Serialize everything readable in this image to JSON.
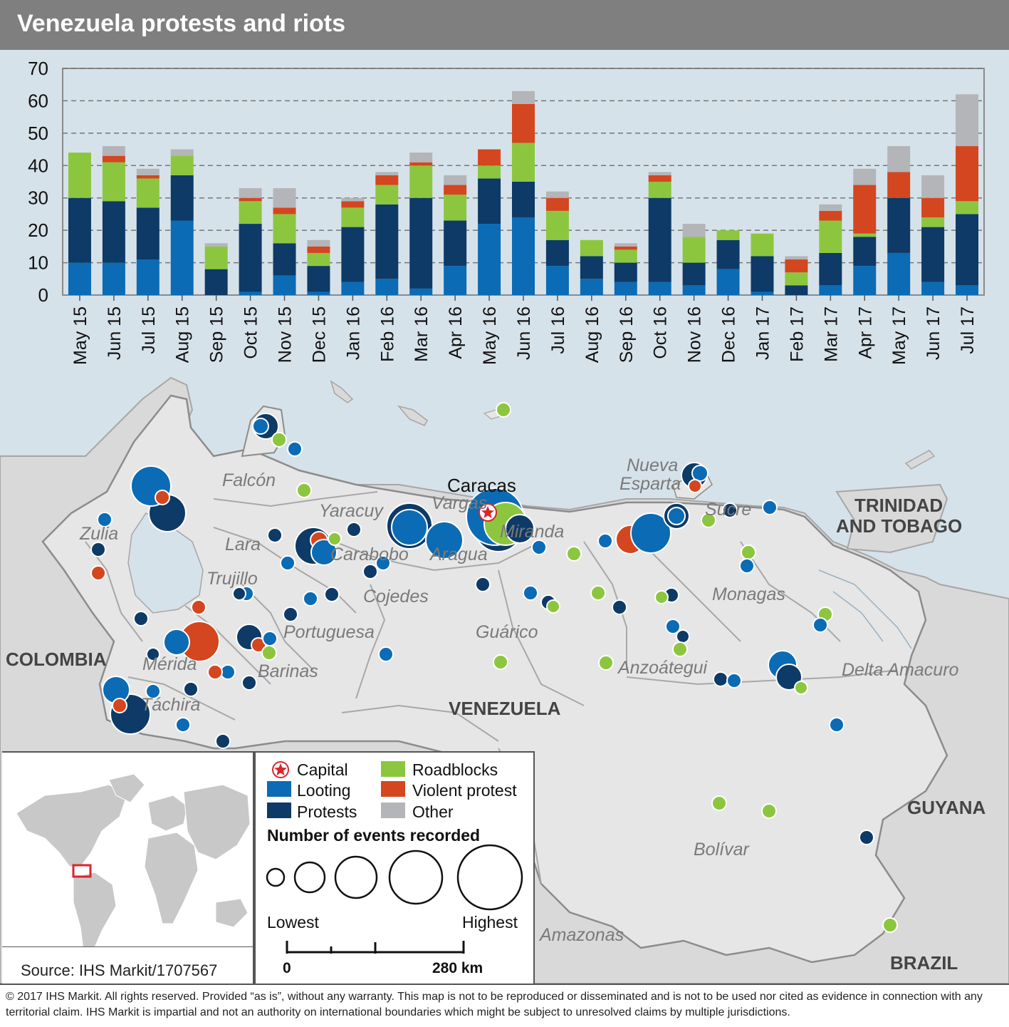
{
  "title": "Venezuela protests and riots",
  "chart_data": {
    "type": "bar",
    "stacked": true,
    "categories": [
      "May 15",
      "Jun 15",
      "Jul 15",
      "Aug 15",
      "Sep 15",
      "Oct 15",
      "Nov 15",
      "Dec 15",
      "Jan 16",
      "Feb 16",
      "Mar 16",
      "Apr 16",
      "May 16",
      "Jun 16",
      "Jul 16",
      "Aug 16",
      "Sep 16",
      "Oct 16",
      "Nov 16",
      "Dec 16",
      "Jan 17",
      "Feb 17",
      "Mar 17",
      "Apr 17",
      "May 17",
      "Jun 17",
      "Jul 17"
    ],
    "ylim": [
      0,
      70
    ],
    "yticks": [
      0,
      10,
      20,
      30,
      40,
      50,
      60,
      70
    ],
    "grid": "horizontal-dashed",
    "series": [
      {
        "name": "Looting",
        "color": "#0b6bb5",
        "values": [
          10,
          10,
          11,
          23,
          0,
          1,
          6,
          1,
          4,
          5,
          2,
          9,
          22,
          24,
          9,
          5,
          4,
          4,
          3,
          8,
          1,
          0,
          3,
          9,
          13,
          4,
          3
        ]
      },
      {
        "name": "Protests",
        "color": "#0d3a66",
        "values": [
          20,
          19,
          16,
          14,
          8,
          21,
          10,
          8,
          17,
          23,
          28,
          14,
          14,
          11,
          8,
          7,
          6,
          26,
          7,
          9,
          11,
          3,
          10,
          9,
          17,
          17,
          22
        ]
      },
      {
        "name": "Roadblocks",
        "color": "#8cc63f",
        "values": [
          14,
          12,
          9,
          6,
          7,
          7,
          9,
          4,
          6,
          6,
          10,
          8,
          4,
          12,
          9,
          5,
          4,
          5,
          8,
          3,
          7,
          4,
          10,
          1,
          0,
          3,
          4
        ]
      },
      {
        "name": "Violent protest",
        "color": "#d4461f",
        "values": [
          0,
          2,
          1,
          0,
          0,
          1,
          2,
          2,
          2,
          3,
          1,
          3,
          5,
          12,
          4,
          0,
          1,
          2,
          0,
          0,
          0,
          4,
          3,
          15,
          8,
          6,
          17
        ]
      },
      {
        "name": "Other",
        "color": "#b3b5b8",
        "values": [
          0,
          3,
          2,
          2,
          1,
          3,
          6,
          2,
          1,
          1,
          3,
          3,
          0,
          4,
          2,
          0,
          1,
          1,
          4,
          0,
          0,
          1,
          2,
          5,
          8,
          7,
          16
        ]
      }
    ]
  },
  "map": {
    "capital_label": "Caracas",
    "country_labels": [
      "COLOMBIA",
      "VENEZUELA",
      "TRINIDAD",
      "AND TOBAGO",
      "GUYANA",
      "BRAZIL"
    ],
    "state_labels": [
      "Falcón",
      "Zulia",
      "Lara",
      "Yaracuy",
      "Vargas",
      "Miranda",
      "Carabobo",
      "Aragua",
      "Trujillo",
      "Cojedes",
      "Portuguesa",
      "Guárico",
      "Nueva",
      "Esparta",
      "Sucre",
      "Monagas",
      "Mérida",
      "Barinas",
      "Táchira",
      "Anzoátegui",
      "Delta Amacuro",
      "Bolívar",
      "Amazonas"
    ],
    "colors": {
      "sea": "#d6e2ea",
      "land": "#d9d9d9",
      "venezuela": "#e6e6e6",
      "border": "#a6a6a6",
      "capital": "#d9262c"
    }
  },
  "legend": {
    "items": [
      {
        "label": "Capital",
        "icon": "star-icon",
        "color": "#d9262c"
      },
      {
        "label": "Looting",
        "color": "#0b6bb5"
      },
      {
        "label": "Protests",
        "color": "#0d3a66"
      },
      {
        "label": "Roadblocks",
        "color": "#8cc63f"
      },
      {
        "label": "Violent protest",
        "color": "#d4461f"
      },
      {
        "label": "Other",
        "color": "#b3b5b8"
      }
    ],
    "size_title": "Number of events recorded",
    "size_low": "Lowest",
    "size_high": "Highest",
    "scale_zero": "0",
    "scale_max": "280 km"
  },
  "source": "Source: IHS Markit/1707567",
  "footer": "© 2017 IHS Markit. All rights reserved. Provided “as is”, without any warranty. This map is not to be reproduced or disseminated and is not to be used nor cited as evidence in connection with any territorial claim. IHS Markit is impartial and not an authority on international boundaries which might be subject to unresolved claims by multiple jurisdictions."
}
